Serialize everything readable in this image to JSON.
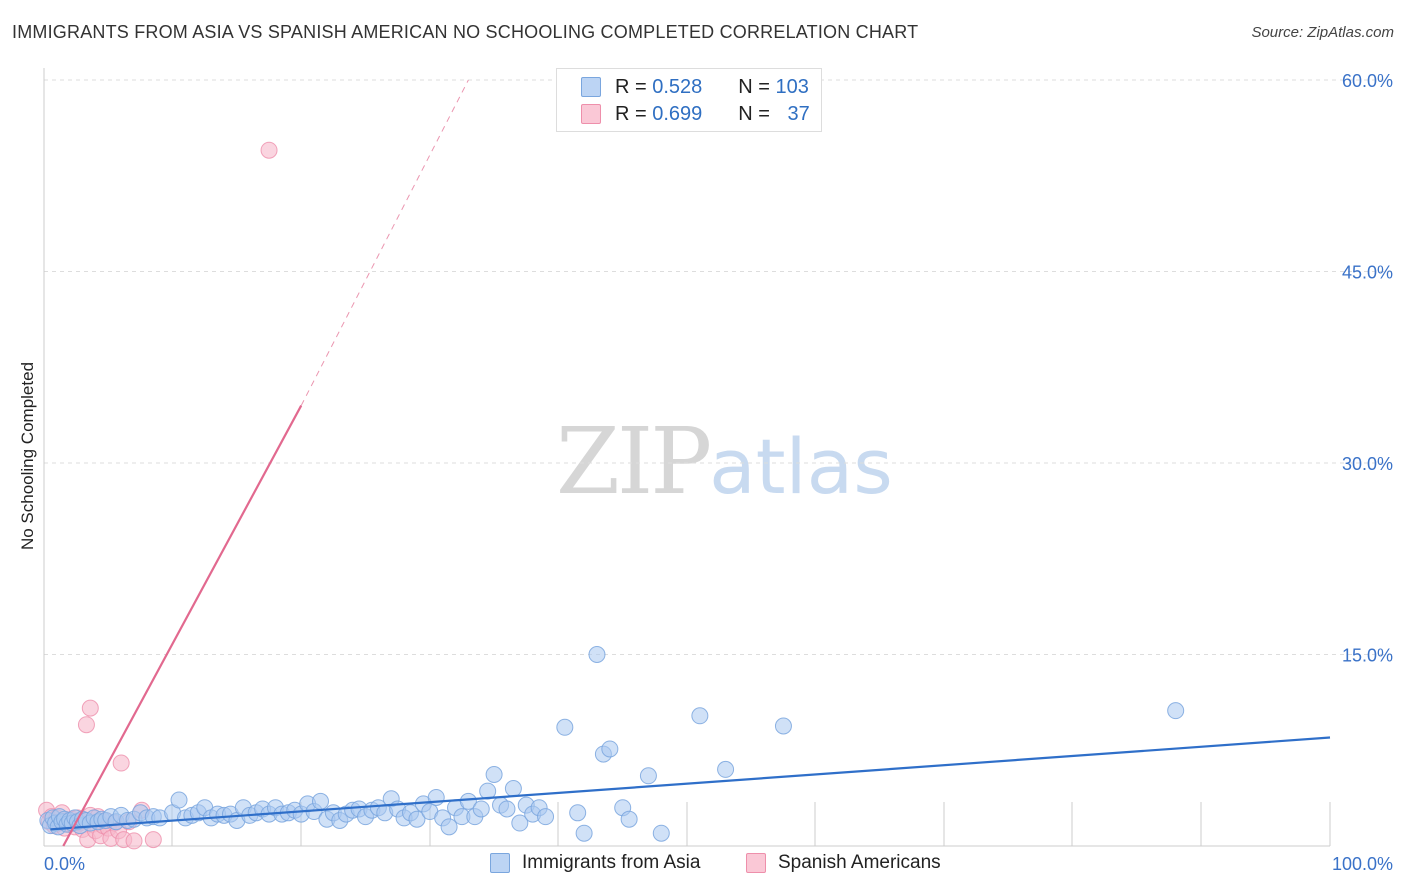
{
  "title": "IMMIGRANTS FROM ASIA VS SPANISH AMERICAN NO SCHOOLING COMPLETED CORRELATION CHART",
  "source": "Source: ZipAtlas.com",
  "watermark": {
    "zip": "ZIP",
    "atlas": "atlas"
  },
  "colors": {
    "blue_fill": "#aac8f0",
    "blue_stroke": "#7aa6de",
    "blue_line": "#2f6fc9",
    "pink_fill": "#f7b9cc",
    "pink_stroke": "#ee8fab",
    "pink_line": "#e2698f",
    "grid": "#dddddd",
    "tick_label": "#3a72c8"
  },
  "legend_top": {
    "rows": [
      {
        "r_label": "R =",
        "r_value": "0.528",
        "n_label": "N =",
        "n_value": "103"
      },
      {
        "r_label": "R =",
        "r_value": "0.699",
        "n_label": "N =",
        "n_value": "37"
      }
    ]
  },
  "legend_bottom": [
    "Immigrants from Asia",
    "Spanish Americans"
  ],
  "chart_data": {
    "type": "scatter",
    "title": "IMMIGRANTS FROM ASIA VS SPANISH AMERICAN NO SCHOOLING COMPLETED CORRELATION CHART",
    "xlabel": "",
    "ylabel": "No Schooling Completed",
    "xlim": [
      0,
      100
    ],
    "ylim": [
      0,
      62
    ],
    "x_tick_labels": [
      "0.0%",
      "100.0%"
    ],
    "y_ticks": [
      15,
      30,
      45,
      60
    ],
    "y_tick_labels": [
      "15.0%",
      "30.0%",
      "45.0%",
      "60.0%"
    ],
    "grid": true,
    "legend_position": "bottom",
    "series": [
      {
        "name": "Immigrants from Asia",
        "r": 0.528,
        "n": 103,
        "trend": {
          "x": [
            0.5,
            100
          ],
          "y": [
            1.3,
            8.5
          ]
        },
        "points": [
          [
            0.3,
            2.0
          ],
          [
            0.5,
            1.6
          ],
          [
            0.7,
            2.2
          ],
          [
            0.9,
            1.8
          ],
          [
            1.1,
            1.5
          ],
          [
            1.2,
            2.3
          ],
          [
            1.4,
            1.9
          ],
          [
            1.6,
            2.1
          ],
          [
            1.8,
            1.7
          ],
          [
            2.0,
            2.0
          ],
          [
            2.2,
            1.8
          ],
          [
            2.4,
            2.2
          ],
          [
            2.6,
            1.9
          ],
          [
            2.8,
            1.6
          ],
          [
            3.0,
            2.1
          ],
          [
            3.3,
            2.0
          ],
          [
            3.6,
            1.8
          ],
          [
            3.9,
            2.2
          ],
          [
            4.2,
            1.9
          ],
          [
            4.5,
            2.1
          ],
          [
            4.8,
            2.0
          ],
          [
            5.2,
            2.3
          ],
          [
            5.6,
            1.9
          ],
          [
            6.0,
            2.4
          ],
          [
            6.5,
            2.0
          ],
          [
            7.0,
            2.1
          ],
          [
            7.5,
            2.6
          ],
          [
            8.0,
            2.2
          ],
          [
            8.5,
            2.3
          ],
          [
            9.0,
            2.2
          ],
          [
            10.0,
            2.6
          ],
          [
            10.5,
            3.6
          ],
          [
            11.0,
            2.2
          ],
          [
            11.5,
            2.4
          ],
          [
            12.0,
            2.6
          ],
          [
            12.5,
            3.0
          ],
          [
            13.0,
            2.2
          ],
          [
            13.5,
            2.5
          ],
          [
            14.0,
            2.4
          ],
          [
            14.5,
            2.5
          ],
          [
            15.0,
            2.0
          ],
          [
            15.5,
            3.0
          ],
          [
            16.0,
            2.4
          ],
          [
            16.5,
            2.6
          ],
          [
            17.0,
            2.9
          ],
          [
            17.5,
            2.5
          ],
          [
            18.0,
            3.0
          ],
          [
            18.5,
            2.5
          ],
          [
            19.0,
            2.6
          ],
          [
            19.5,
            2.8
          ],
          [
            20.0,
            2.5
          ],
          [
            20.5,
            3.3
          ],
          [
            21.0,
            2.7
          ],
          [
            21.5,
            3.5
          ],
          [
            22.0,
            2.1
          ],
          [
            22.5,
            2.6
          ],
          [
            23.0,
            2.0
          ],
          [
            23.5,
            2.5
          ],
          [
            24.0,
            2.8
          ],
          [
            24.5,
            2.9
          ],
          [
            25.0,
            2.3
          ],
          [
            25.5,
            2.8
          ],
          [
            26.0,
            3.0
          ],
          [
            26.5,
            2.6
          ],
          [
            27.0,
            3.7
          ],
          [
            27.5,
            2.9
          ],
          [
            28.0,
            2.2
          ],
          [
            28.5,
            2.6
          ],
          [
            29.0,
            2.1
          ],
          [
            29.5,
            3.3
          ],
          [
            30.0,
            2.7
          ],
          [
            30.5,
            3.8
          ],
          [
            31.0,
            2.2
          ],
          [
            31.5,
            1.5
          ],
          [
            32.0,
            3.0
          ],
          [
            32.5,
            2.3
          ],
          [
            33.0,
            3.5
          ],
          [
            33.5,
            2.3
          ],
          [
            34.0,
            2.9
          ],
          [
            34.5,
            4.3
          ],
          [
            35.0,
            5.6
          ],
          [
            35.5,
            3.2
          ],
          [
            36.0,
            2.9
          ],
          [
            36.5,
            4.5
          ],
          [
            37.0,
            1.8
          ],
          [
            37.5,
            3.2
          ],
          [
            38.0,
            2.5
          ],
          [
            38.5,
            3.0
          ],
          [
            39.0,
            2.3
          ],
          [
            40.5,
            9.3
          ],
          [
            41.5,
            2.6
          ],
          [
            42.0,
            1.0
          ],
          [
            43.0,
            15.0
          ],
          [
            43.5,
            7.2
          ],
          [
            44.0,
            7.6
          ],
          [
            45.0,
            3.0
          ],
          [
            45.5,
            2.1
          ],
          [
            47.0,
            5.5
          ],
          [
            48.0,
            1.0
          ],
          [
            51.0,
            10.2
          ],
          [
            53.0,
            6.0
          ],
          [
            57.5,
            9.4
          ],
          [
            88.0,
            10.6
          ]
        ]
      },
      {
        "name": "Spanish Americans",
        "r": 0.699,
        "n": 37,
        "trend": {
          "x": [
            1.5,
            20
          ],
          "y": [
            0,
            34.5
          ]
        },
        "trend_dashed": {
          "x": [
            20,
            33
          ],
          "y": [
            34.5,
            60
          ]
        },
        "points": [
          [
            0.2,
            2.8
          ],
          [
            0.4,
            1.9
          ],
          [
            0.6,
            2.3
          ],
          [
            0.8,
            1.6
          ],
          [
            1.0,
            2.2
          ],
          [
            1.2,
            1.8
          ],
          [
            1.4,
            2.6
          ],
          [
            1.6,
            1.4
          ],
          [
            1.8,
            2.0
          ],
          [
            2.0,
            1.7
          ],
          [
            2.2,
            2.1
          ],
          [
            2.4,
            1.5
          ],
          [
            2.6,
            2.2
          ],
          [
            2.8,
            1.8
          ],
          [
            3.0,
            1.3
          ],
          [
            3.2,
            2.0
          ],
          [
            3.4,
            0.5
          ],
          [
            3.6,
            2.4
          ],
          [
            3.8,
            1.7
          ],
          [
            4.0,
            1.2
          ],
          [
            4.2,
            2.3
          ],
          [
            4.4,
            0.8
          ],
          [
            4.6,
            1.6
          ],
          [
            4.8,
            2.0
          ],
          [
            5.0,
            1.4
          ],
          [
            5.2,
            0.6
          ],
          [
            5.5,
            1.8
          ],
          [
            5.8,
            1.2
          ],
          [
            6.2,
            0.5
          ],
          [
            6.6,
            1.9
          ],
          [
            7.0,
            0.4
          ],
          [
            7.6,
            2.8
          ],
          [
            8.5,
            0.5
          ],
          [
            3.3,
            9.5
          ],
          [
            3.6,
            10.8
          ],
          [
            6.0,
            6.5
          ],
          [
            17.5,
            54.5
          ]
        ]
      }
    ]
  }
}
